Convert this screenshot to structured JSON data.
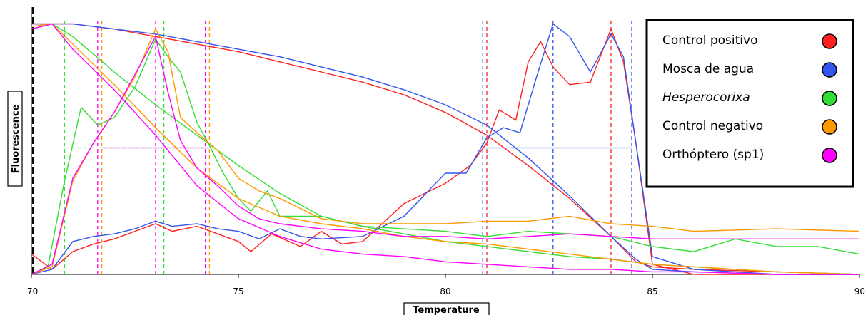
{
  "chart_data": {
    "type": "line",
    "title": "",
    "xlabel": "Temperature",
    "ylabel": "Fluorescence",
    "xlim": [
      70,
      90
    ],
    "ylim": [
      0,
      1
    ],
    "x_ticks": [
      "70",
      "75",
      "80",
      "85",
      "90"
    ],
    "grid": false,
    "legend_position": "top-right",
    "series": [
      {
        "name": "Control positivo",
        "color": "#ff2020",
        "melt_curve": [
          [
            70,
            0.99
          ],
          [
            71,
            0.99
          ],
          [
            72,
            0.97
          ],
          [
            73,
            0.94
          ],
          [
            74,
            0.91
          ],
          [
            75,
            0.88
          ],
          [
            76,
            0.84
          ],
          [
            77,
            0.8
          ],
          [
            78,
            0.76
          ],
          [
            79,
            0.71
          ],
          [
            80,
            0.64
          ],
          [
            81,
            0.55
          ],
          [
            82,
            0.43
          ],
          [
            83,
            0.3
          ],
          [
            84,
            0.15
          ],
          [
            84.6,
            0.05
          ],
          [
            85,
            0.03
          ],
          [
            86,
            0.02
          ],
          [
            88,
            0.01
          ],
          [
            90,
            0.0
          ]
        ],
        "derivative_curve": [
          [
            70,
            0.08
          ],
          [
            70.5,
            0.02
          ],
          [
            71,
            0.09
          ],
          [
            71.5,
            0.12
          ],
          [
            72,
            0.14
          ],
          [
            72.5,
            0.17
          ],
          [
            73,
            0.2
          ],
          [
            73.4,
            0.17
          ],
          [
            74,
            0.19
          ],
          [
            74.5,
            0.16
          ],
          [
            75,
            0.13
          ],
          [
            75.3,
            0.09
          ],
          [
            75.8,
            0.16
          ],
          [
            76.5,
            0.11
          ],
          [
            77,
            0.17
          ],
          [
            77.5,
            0.12
          ],
          [
            78,
            0.13
          ],
          [
            79,
            0.28
          ],
          [
            80,
            0.36
          ],
          [
            80.6,
            0.43
          ],
          [
            81,
            0.52
          ],
          [
            81.3,
            0.65
          ],
          [
            81.7,
            0.61
          ],
          [
            82,
            0.84
          ],
          [
            82.3,
            0.92
          ],
          [
            82.6,
            0.82
          ],
          [
            83,
            0.75
          ],
          [
            83.5,
            0.76
          ],
          [
            84,
            0.97
          ],
          [
            84.3,
            0.84
          ],
          [
            84.6,
            0.52
          ],
          [
            85,
            0.04
          ],
          [
            86,
            0.0
          ],
          [
            88,
            0.0
          ],
          [
            90,
            0.0
          ]
        ],
        "tm": [
          81.0,
          84.0
        ]
      },
      {
        "name": "Mosca de agua",
        "color": "#3355ee",
        "melt_curve": [
          [
            70,
            0.99
          ],
          [
            71,
            0.99
          ],
          [
            72,
            0.97
          ],
          [
            73,
            0.95
          ],
          [
            74,
            0.92
          ],
          [
            75,
            0.89
          ],
          [
            76,
            0.86
          ],
          [
            77,
            0.82
          ],
          [
            78,
            0.78
          ],
          [
            79,
            0.73
          ],
          [
            80,
            0.67
          ],
          [
            81,
            0.59
          ],
          [
            82,
            0.46
          ],
          [
            83,
            0.31
          ],
          [
            84,
            0.15
          ],
          [
            84.6,
            0.06
          ],
          [
            85,
            0.02
          ],
          [
            86,
            0.01
          ],
          [
            88,
            0.0
          ],
          [
            90,
            0.0
          ]
        ],
        "derivative_curve": [
          [
            70,
            0.0
          ],
          [
            70.5,
            0.02
          ],
          [
            71,
            0.13
          ],
          [
            71.5,
            0.15
          ],
          [
            72,
            0.16
          ],
          [
            72.5,
            0.18
          ],
          [
            73,
            0.21
          ],
          [
            73.4,
            0.19
          ],
          [
            74,
            0.2
          ],
          [
            74.5,
            0.18
          ],
          [
            75,
            0.17
          ],
          [
            75.5,
            0.14
          ],
          [
            76,
            0.18
          ],
          [
            76.5,
            0.15
          ],
          [
            77,
            0.14
          ],
          [
            78,
            0.15
          ],
          [
            79,
            0.23
          ],
          [
            80,
            0.4
          ],
          [
            80.5,
            0.4
          ],
          [
            81,
            0.54
          ],
          [
            81.4,
            0.58
          ],
          [
            81.8,
            0.56
          ],
          [
            82.2,
            0.78
          ],
          [
            82.6,
            0.99
          ],
          [
            83,
            0.94
          ],
          [
            83.5,
            0.8
          ],
          [
            84,
            0.95
          ],
          [
            84.3,
            0.86
          ],
          [
            84.6,
            0.52
          ],
          [
            85,
            0.07
          ],
          [
            86,
            0.02
          ],
          [
            88,
            0.0
          ],
          [
            90,
            0.0
          ]
        ],
        "tm": [
          80.9,
          82.6,
          84.5
        ]
      },
      {
        "name": "Hesperocorixa",
        "color": "#33dd33",
        "melt_curve": [
          [
            70,
            0.97
          ],
          [
            70.5,
            0.99
          ],
          [
            71,
            0.94
          ],
          [
            72,
            0.8
          ],
          [
            73,
            0.67
          ],
          [
            74,
            0.55
          ],
          [
            75,
            0.43
          ],
          [
            76,
            0.32
          ],
          [
            77,
            0.23
          ],
          [
            78,
            0.19
          ],
          [
            79,
            0.16
          ],
          [
            80,
            0.13
          ],
          [
            81,
            0.11
          ],
          [
            82,
            0.09
          ],
          [
            83,
            0.07
          ],
          [
            84,
            0.06
          ],
          [
            85,
            0.04
          ],
          [
            86,
            0.03
          ],
          [
            88,
            0.01
          ],
          [
            90,
            0.0
          ]
        ],
        "derivative_curve": [
          [
            70,
            0.0
          ],
          [
            70.4,
            0.03
          ],
          [
            70.8,
            0.37
          ],
          [
            71.2,
            0.66
          ],
          [
            71.6,
            0.59
          ],
          [
            72,
            0.62
          ],
          [
            72.5,
            0.74
          ],
          [
            73,
            0.93
          ],
          [
            73.3,
            0.86
          ],
          [
            73.6,
            0.8
          ],
          [
            74,
            0.6
          ],
          [
            74.3,
            0.51
          ],
          [
            74.6,
            0.41
          ],
          [
            75,
            0.3
          ],
          [
            75.3,
            0.25
          ],
          [
            75.7,
            0.33
          ],
          [
            76,
            0.23
          ],
          [
            77,
            0.23
          ],
          [
            78,
            0.19
          ],
          [
            79,
            0.18
          ],
          [
            80,
            0.17
          ],
          [
            81,
            0.15
          ],
          [
            82,
            0.17
          ],
          [
            83,
            0.16
          ],
          [
            84,
            0.15
          ],
          [
            85,
            0.11
          ],
          [
            86,
            0.09
          ],
          [
            87,
            0.14
          ],
          [
            88,
            0.11
          ],
          [
            89,
            0.11
          ],
          [
            90,
            0.08
          ]
        ],
        "tm": [
          70.8,
          73.2
        ]
      },
      {
        "name": "Control negativo",
        "color": "#ff9900",
        "melt_curve": [
          [
            70,
            0.98
          ],
          [
            70.5,
            0.99
          ],
          [
            71,
            0.91
          ],
          [
            72,
            0.75
          ],
          [
            73,
            0.58
          ],
          [
            74,
            0.42
          ],
          [
            75,
            0.3
          ],
          [
            76,
            0.23
          ],
          [
            77,
            0.2
          ],
          [
            78,
            0.18
          ],
          [
            79,
            0.15
          ],
          [
            80,
            0.13
          ],
          [
            81,
            0.12
          ],
          [
            82,
            0.1
          ],
          [
            83,
            0.08
          ],
          [
            84,
            0.06
          ],
          [
            85,
            0.04
          ],
          [
            86,
            0.03
          ],
          [
            88,
            0.01
          ],
          [
            90,
            0.0
          ]
        ],
        "derivative_curve": [
          [
            70,
            0.0
          ],
          [
            70.5,
            0.03
          ],
          [
            71,
            0.37
          ],
          [
            71.5,
            0.52
          ],
          [
            72,
            0.64
          ],
          [
            72.5,
            0.78
          ],
          [
            73,
            0.97
          ],
          [
            73.3,
            0.88
          ],
          [
            73.6,
            0.62
          ],
          [
            74,
            0.56
          ],
          [
            74.5,
            0.49
          ],
          [
            75,
            0.38
          ],
          [
            75.5,
            0.33
          ],
          [
            76,
            0.3
          ],
          [
            77,
            0.22
          ],
          [
            78,
            0.2
          ],
          [
            79,
            0.2
          ],
          [
            80,
            0.2
          ],
          [
            81,
            0.21
          ],
          [
            82,
            0.21
          ],
          [
            83,
            0.23
          ],
          [
            84,
            0.2
          ],
          [
            85,
            0.19
          ],
          [
            86,
            0.17
          ],
          [
            88,
            0.18
          ],
          [
            90,
            0.17
          ]
        ],
        "tm": [
          71.7,
          74.3
        ]
      },
      {
        "name": "Orthóptero (sp1)",
        "color": "#ff00ff",
        "melt_curve": [
          [
            70,
            0.97
          ],
          [
            70.5,
            0.99
          ],
          [
            71,
            0.89
          ],
          [
            72,
            0.73
          ],
          [
            73,
            0.55
          ],
          [
            74,
            0.35
          ],
          [
            75,
            0.22
          ],
          [
            76,
            0.15
          ],
          [
            77,
            0.1
          ],
          [
            78,
            0.08
          ],
          [
            79,
            0.07
          ],
          [
            80,
            0.05
          ],
          [
            81,
            0.04
          ],
          [
            82,
            0.03
          ],
          [
            83,
            0.02
          ],
          [
            84,
            0.02
          ],
          [
            85,
            0.01
          ],
          [
            86,
            0.01
          ],
          [
            88,
            0.0
          ],
          [
            90,
            0.0
          ]
        ],
        "derivative_curve": [
          [
            70,
            0.0
          ],
          [
            70.5,
            0.04
          ],
          [
            71,
            0.38
          ],
          [
            71.5,
            0.52
          ],
          [
            72,
            0.64
          ],
          [
            72.5,
            0.79
          ],
          [
            73,
            0.94
          ],
          [
            73.3,
            0.72
          ],
          [
            73.6,
            0.53
          ],
          [
            74,
            0.42
          ],
          [
            74.5,
            0.35
          ],
          [
            75,
            0.27
          ],
          [
            75.5,
            0.22
          ],
          [
            76,
            0.2
          ],
          [
            77,
            0.18
          ],
          [
            78,
            0.17
          ],
          [
            79,
            0.15
          ],
          [
            80,
            0.15
          ],
          [
            81,
            0.14
          ],
          [
            82,
            0.15
          ],
          [
            83,
            0.16
          ],
          [
            84,
            0.15
          ],
          [
            85,
            0.14
          ],
          [
            86,
            0.14
          ],
          [
            88,
            0.14
          ],
          [
            90,
            0.14
          ]
        ],
        "tm": [
          71.6,
          73.0,
          74.2
        ]
      }
    ],
    "threshold": {
      "y": 0.5,
      "x_start": 70.8,
      "x_end": 84.5
    }
  }
}
